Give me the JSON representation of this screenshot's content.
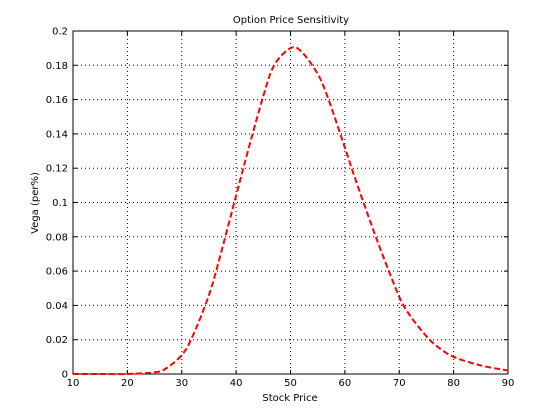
{
  "chart_data": {
    "type": "line",
    "title": "Option Price Sensitivity",
    "xlabel": "Stock Price",
    "ylabel": "Vega (per%)",
    "xlim": [
      10,
      90
    ],
    "ylim": [
      0,
      0.2
    ],
    "x_ticks": [
      "10",
      "20",
      "30",
      "40",
      "50",
      "60",
      "70",
      "80",
      "90"
    ],
    "y_ticks": [
      "0",
      "0.02",
      "0.04",
      "0.06",
      "0.08",
      "0.1",
      "0.12",
      "0.14",
      "0.16",
      "0.18",
      "0.2"
    ],
    "grid": true,
    "series": [
      {
        "color": "#ff0000",
        "line_style": "dashed",
        "x": [
          10,
          15,
          20,
          25,
          27,
          30,
          32,
          35,
          37,
          40,
          42,
          45,
          47,
          50,
          52,
          55,
          57,
          60,
          62,
          65,
          67,
          70,
          72,
          75,
          77,
          80,
          85,
          90
        ],
        "y": [
          0.0,
          0.0,
          0.0,
          0.001,
          0.003,
          0.011,
          0.022,
          0.046,
          0.068,
          0.104,
          0.128,
          0.162,
          0.18,
          0.19,
          0.188,
          0.175,
          0.16,
          0.132,
          0.113,
          0.086,
          0.069,
          0.045,
          0.034,
          0.022,
          0.016,
          0.01,
          0.005,
          0.002
        ]
      }
    ]
  }
}
